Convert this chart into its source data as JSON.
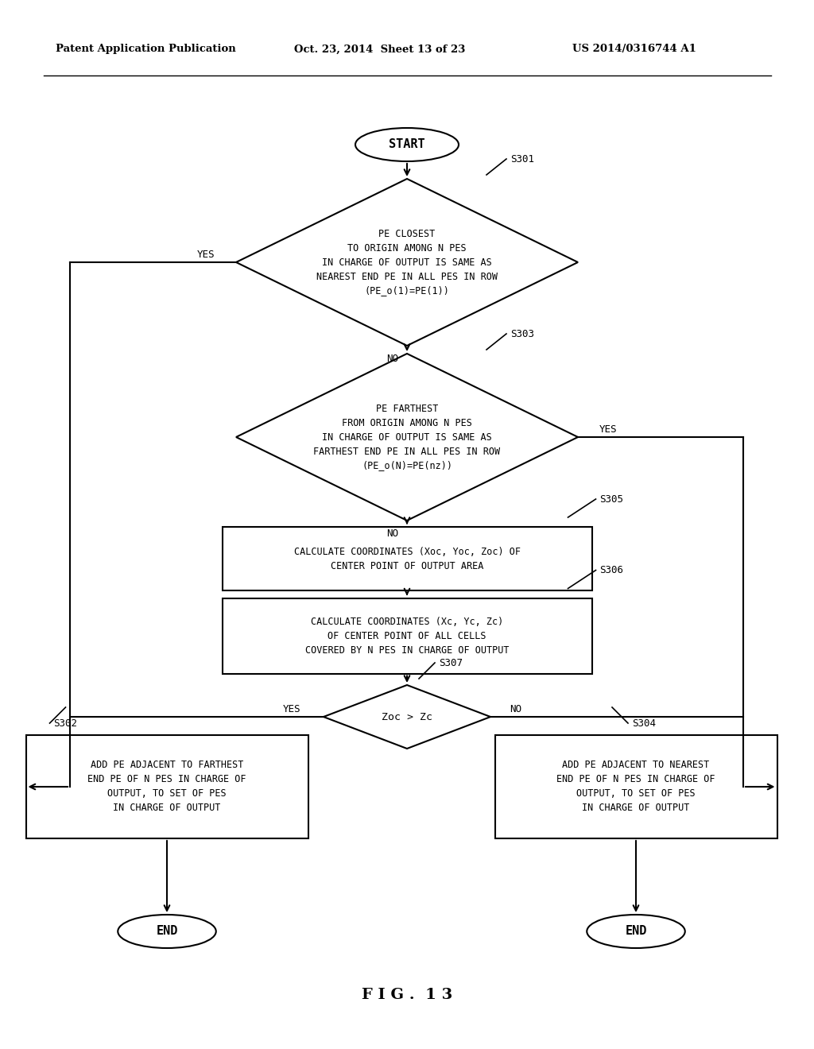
{
  "header_left": "Patent Application Publication",
  "header_mid": "Oct. 23, 2014  Sheet 13 of 23",
  "header_right": "US 2014/0316744 A1",
  "figure_label": "F I G .  1 3",
  "bg_color": "#ffffff",
  "line_color": "#000000",
  "start_label": "START",
  "end_label": "END",
  "d301_text": "PE CLOSEST\nTO ORIGIN AMONG N PES\nIN CHARGE OF OUTPUT IS SAME AS\nNEAREST END PE IN ALL PES IN ROW\n(PE_o(1)=PE(1))",
  "d303_text": "PE FARTHEST\nFROM ORIGIN AMONG N PES\nIN CHARGE OF OUTPUT IS SAME AS\nFARTHEST END PE IN ALL PES IN ROW\n(PE_o(N)=PE(nz))",
  "r305_text": "CALCULATE COORDINATES (Xoc, Yoc, Zoc) OF\nCENTER POINT OF OUTPUT AREA",
  "r306_text": "CALCULATE COORDINATES (Xc, Yc, Zc)\nOF CENTER POINT OF ALL CELLS\nCOVERED BY N PES IN CHARGE OF OUTPUT",
  "d307_text": "Zoc > Zc",
  "r302_text": "ADD PE ADJACENT TO FARTHEST\nEND PE OF N PES IN CHARGE OF\nOUTPUT, TO SET OF PES\nIN CHARGE OF OUTPUT",
  "r304_text": "ADD PE ADJACENT TO NEAREST\nEND PE OF N PES IN CHARGE OF\nOUTPUT, TO SET OF PES\nIN CHARGE OF OUTPUT",
  "s301": "S301",
  "s302": "S302",
  "s303": "S303",
  "s304": "S304",
  "s305": "S305",
  "s306": "S306",
  "s307": "S307",
  "yes": "YES",
  "no": "NO"
}
